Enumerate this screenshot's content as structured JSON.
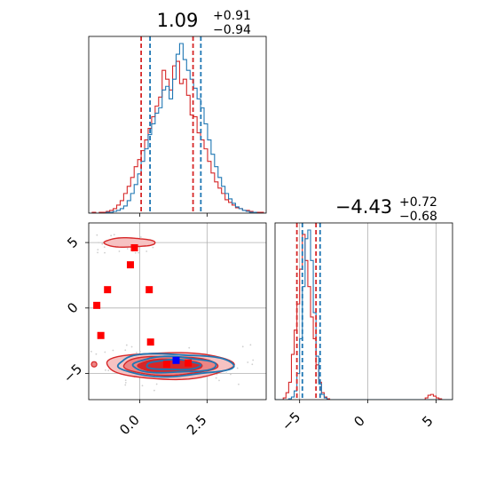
{
  "chart_data": {
    "type": "corner",
    "panels": [
      {
        "id": "hist-x",
        "type": "histogram",
        "title_value": "1.09",
        "title_plus": "+0.91",
        "title_minus": "−0.94",
        "xlim": [
          -1.9,
          4.7
        ],
        "quantiles": {
          "red": [
            0.05,
            1.98
          ],
          "blue": [
            0.38,
            2.27
          ]
        },
        "series": [
          {
            "name": "",
            "color": "#d62728",
            "bin_start": -1.9,
            "bin_width": 0.13,
            "counts": [
              0,
              1,
              0,
              1,
              1,
              2,
              3,
              5,
              9,
              14,
              22,
              30,
              40,
              52,
              60,
              70,
              82,
              95,
              108,
              120,
              130,
              160,
              150,
              138,
              165,
              170,
              145,
              150,
              132,
              110,
              108,
              90,
              82,
              72,
              58,
              45,
              35,
              28,
              22,
              15,
              12,
              9,
              6,
              5,
              3,
              3,
              2,
              1,
              1,
              1,
              0,
              0
            ]
          },
          {
            "name": "",
            "color": "#1f77b4",
            "bin_start": -1.9,
            "bin_width": 0.13,
            "counts": [
              0,
              0,
              0,
              0,
              0,
              1,
              1,
              2,
              3,
              5,
              8,
              14,
              22,
              32,
              44,
              58,
              72,
              88,
              100,
              112,
              118,
              138,
              142,
              128,
              150,
              178,
              190,
              172,
              160,
              150,
              140,
              128,
              118,
              100,
              82,
              66,
              52,
              40,
              30,
              22,
              16,
              11,
              7,
              5,
              3,
              2,
              1,
              1,
              0,
              0,
              0,
              0
            ]
          }
        ]
      },
      {
        "id": "hist-y",
        "type": "histogram",
        "title_value": "−4.43",
        "title_plus": "+0.72",
        "title_minus": "−0.68",
        "xlim": [
          -6.8,
          6.2
        ],
        "xticks": [
          -5,
          0,
          5
        ],
        "xtick_labels": [
          "−5",
          "0",
          "5"
        ],
        "quantiles": {
          "red": [
            -5.2,
            -3.8
          ],
          "blue": [
            -4.8,
            -3.5
          ]
        },
        "series": [
          {
            "name": "",
            "color": "#d62728",
            "bin_start": -6.8,
            "bin_width": 0.2,
            "counts": [
              0,
              0,
              0,
              2,
              8,
              20,
              52,
              80,
              110,
              150,
              190,
              160,
              130,
              95,
              70,
              40,
              20,
              8,
              3,
              1,
              0,
              0,
              0,
              0,
              0,
              0,
              0,
              0,
              0,
              0,
              0,
              0,
              0,
              0,
              0,
              0,
              0,
              0,
              0,
              0,
              0,
              0,
              0,
              0,
              0,
              0,
              0,
              0,
              0,
              0,
              0,
              0,
              0,
              0,
              0,
              2,
              5,
              6,
              4,
              2,
              1,
              0,
              0,
              0,
              0
            ]
          },
          {
            "name": "",
            "color": "#1f77b4",
            "bin_start": -6.8,
            "bin_width": 0.2,
            "counts": [
              0,
              0,
              0,
              0,
              0,
              1,
              3,
              10,
              30,
              70,
              130,
              185,
              195,
              160,
              100,
              50,
              18,
              6,
              2,
              0,
              0,
              0,
              0,
              0,
              0,
              0,
              0,
              0,
              0,
              0,
              0,
              0,
              0,
              0,
              0,
              0,
              0,
              0,
              0,
              0,
              0,
              0,
              0,
              0,
              0,
              0,
              0,
              0,
              0,
              0,
              0,
              0,
              0,
              0,
              0,
              0,
              0,
              0,
              0,
              0,
              0,
              0,
              0,
              0,
              0
            ]
          }
        ]
      },
      {
        "id": "joint",
        "type": "contour-scatter",
        "xlim": [
          -1.9,
          4.7
        ],
        "ylim": [
          -7.0,
          6.5
        ],
        "xticks": [
          0.0,
          2.5
        ],
        "xtick_labels": [
          "0.0",
          "2.5"
        ],
        "yticks": [
          -5,
          0,
          5
        ],
        "ytick_labels": [
          "−5",
          "0",
          "5"
        ],
        "red_contours": {
          "center": [
            1.1,
            -4.4
          ],
          "levels": [
            [
              2.35,
              1.02
            ],
            [
              1.75,
              0.72
            ],
            [
              1.2,
              0.48
            ]
          ],
          "fills": [
            "#f6c2c2",
            "#ec8585",
            "#d62728"
          ]
        },
        "red_island": {
          "center": [
            -0.4,
            5.0
          ],
          "radius": [
            0.95,
            0.35
          ]
        },
        "blue_contours": {
          "center": [
            1.25,
            -4.35
          ],
          "levels": [
            [
              2.15,
              0.85
            ],
            [
              1.55,
              0.6
            ],
            [
              1.0,
              0.38
            ]
          ]
        },
        "red_markers": [
          {
            "x": -0.2,
            "y": 4.6
          },
          {
            "x": -0.35,
            "y": 3.3
          },
          {
            "x": -1.2,
            "y": 1.4
          },
          {
            "x": 0.35,
            "y": 1.4
          },
          {
            "x": -1.6,
            "y": 0.2
          },
          {
            "x": -1.45,
            "y": -2.1
          },
          {
            "x": 0.4,
            "y": -2.6
          },
          {
            "x": 1.0,
            "y": -4.3
          },
          {
            "x": 1.8,
            "y": -4.2
          }
        ],
        "blue_marker": {
          "x": 1.35,
          "y": -4.0
        }
      }
    ]
  }
}
